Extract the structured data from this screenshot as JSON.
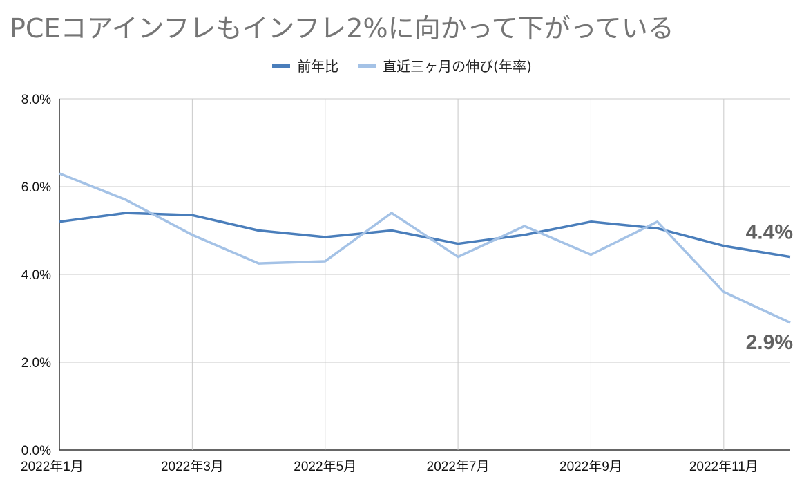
{
  "chart_data": {
    "type": "line",
    "title": "PCEコアインフレもインフレ2%に向かって下がっている",
    "x": [
      "2022年1月",
      "2022年2月",
      "2022年3月",
      "2022年4月",
      "2022年5月",
      "2022年6月",
      "2022年7月",
      "2022年8月",
      "2022年9月",
      "2022年10月",
      "2022年11月",
      "2022年12月"
    ],
    "x_tick_labels": [
      "2022年1月",
      "2022年3月",
      "2022年5月",
      "2022年7月",
      "2022年9月",
      "2022年11月"
    ],
    "series": [
      {
        "name": "前年比",
        "color": "#4a7ebb",
        "values": [
          5.2,
          5.4,
          5.35,
          5.0,
          4.85,
          5.0,
          4.7,
          4.9,
          5.2,
          5.05,
          4.65,
          4.4
        ]
      },
      {
        "name": "直近三ヶ月の伸び(年率)",
        "color": "#a4c2e6",
        "values": [
          6.3,
          5.7,
          4.9,
          4.25,
          4.3,
          5.4,
          4.4,
          5.1,
          4.45,
          5.2,
          3.6,
          2.9
        ]
      }
    ],
    "end_labels": [
      "4.4%",
      "2.9%"
    ],
    "y_tick_labels": [
      "0.0%",
      "2.0%",
      "4.0%",
      "6.0%",
      "8.0%"
    ],
    "ylim": [
      0,
      8
    ],
    "grid": true,
    "legend_position": "top-center"
  }
}
